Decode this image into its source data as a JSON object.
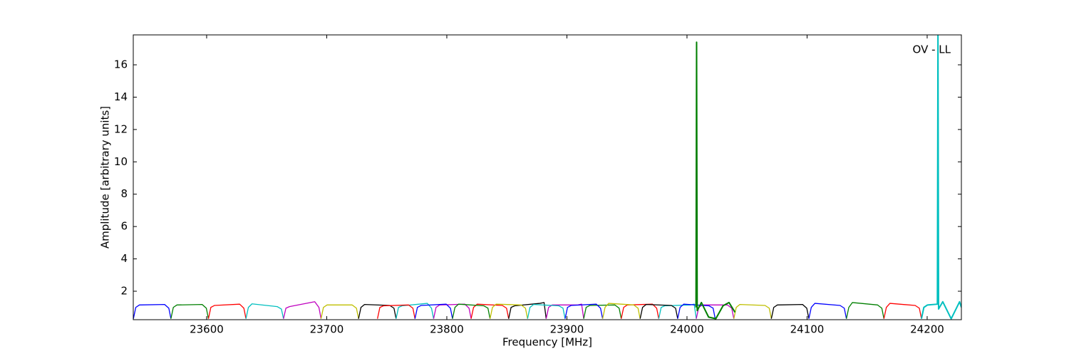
{
  "chart_data": {
    "type": "line",
    "xlabel": "Frequency [MHz]",
    "ylabel": "Amplitude [arbitrary units]",
    "annotation": "OV - LL",
    "xlim": [
      23538.9,
      24228.5
    ],
    "ylim": [
      0.24,
      17.85
    ],
    "xticks": [
      23600,
      23700,
      23800,
      23900,
      24000,
      24100,
      24200
    ],
    "yticks": [
      2,
      4,
      6,
      8,
      10,
      12,
      14,
      16
    ],
    "series": [
      {
        "color": "#0000ff",
        "x": [
          23539,
          23541,
          23544,
          23565,
          23568.5,
          23570.25
        ],
        "values": [
          0.3,
          1.0,
          1.15,
          1.18,
          0.95,
          0.3
        ]
      },
      {
        "color": "#007f00",
        "x": [
          23570.25,
          23572.25,
          23575.25,
          23596.25,
          23599.75,
          23601.5
        ],
        "values": [
          0.3,
          1.0,
          1.15,
          1.18,
          0.95,
          0.3
        ]
      },
      {
        "color": "#ff0000",
        "x": [
          23601.5,
          23603.5,
          23606.5,
          23627.5,
          23631,
          23632.75
        ],
        "values": [
          0.3,
          1.0,
          1.12,
          1.2,
          0.95,
          0.3
        ]
      },
      {
        "color": "#00bfbf",
        "x": [
          23632.75,
          23634.75,
          23637.75,
          23658.75,
          23662.25,
          23664
        ],
        "values": [
          0.3,
          1.0,
          1.22,
          1.05,
          0.9,
          0.3
        ]
      },
      {
        "color": "#bf00bf",
        "x": [
          23664,
          23666,
          23669,
          23690,
          23693.5,
          23695.25
        ],
        "values": [
          0.3,
          0.95,
          1.05,
          1.35,
          1.0,
          0.3
        ]
      },
      {
        "color": "#bfbf00",
        "x": [
          23695.25,
          23697.25,
          23700.25,
          23721.25,
          23724.75,
          23726.5
        ],
        "values": [
          0.3,
          1.0,
          1.15,
          1.15,
          0.95,
          0.3
        ]
      },
      {
        "color": "#000000",
        "x": [
          23726.5,
          23728.5,
          23731.5,
          23752.5,
          23756,
          23757.75
        ],
        "values": [
          0.3,
          1.0,
          1.18,
          1.12,
          0.95,
          0.3
        ]
      },
      {
        "color": "#00bfbf",
        "x": [
          23757.75,
          23759.75,
          23762.75,
          23783.75,
          23787.25,
          23789
        ],
        "values": [
          0.3,
          1.0,
          1.1,
          1.25,
          0.95,
          0.3
        ]
      },
      {
        "color": "#bf00bf",
        "x": [
          23789,
          23791,
          23794,
          23815,
          23818.5,
          23820.25
        ],
        "values": [
          0.3,
          1.0,
          1.15,
          1.2,
          0.95,
          0.3
        ]
      },
      {
        "color": "#ff0000",
        "x": [
          23820.25,
          23822.25,
          23825.25,
          23846.25,
          23849.75,
          23851.5
        ],
        "values": [
          0.3,
          1.0,
          1.2,
          1.12,
          0.95,
          0.3
        ]
      },
      {
        "color": "#000000",
        "x": [
          23851.5,
          23853.5,
          23856.5,
          23877.5,
          23881,
          23882.75
        ],
        "values": [
          0.3,
          1.0,
          1.1,
          1.25,
          1.3,
          0.3
        ]
      },
      {
        "color": "#bf00bf",
        "x": [
          23882.75,
          23884.75,
          23887.75,
          23908.75,
          23912.25,
          23914
        ],
        "values": [
          0.3,
          1.0,
          1.15,
          1.15,
          1.2,
          0.3
        ]
      },
      {
        "color": "#007f00",
        "x": [
          23914,
          23916,
          23919,
          23940,
          23943.5,
          23945.25
        ],
        "values": [
          0.3,
          1.0,
          1.12,
          1.15,
          0.95,
          0.3
        ]
      },
      {
        "color": "#ff0000",
        "x": [
          23945.25,
          23947.25,
          23950.25,
          23971.25,
          23974.75,
          23976.5
        ],
        "values": [
          0.3,
          1.0,
          1.15,
          1.2,
          0.95,
          0.3
        ]
      },
      {
        "color": "#00bfbf",
        "x": [
          23976.5,
          23978.5,
          23981.5,
          24002.5,
          24006,
          24007.75
        ],
        "values": [
          0.3,
          1.0,
          1.1,
          1.15,
          1.2,
          0.3
        ]
      },
      {
        "color": "#bf00bf",
        "x": [
          24007.75,
          24009.75,
          24012.75,
          24033.75,
          24037.25,
          24039
        ],
        "values": [
          0.3,
          1.0,
          1.15,
          1.15,
          0.95,
          0.3
        ]
      },
      {
        "color": "#bfbf00",
        "x": [
          24039,
          24041,
          24044,
          24065,
          24068.5,
          24070.25
        ],
        "values": [
          0.3,
          1.0,
          1.18,
          1.12,
          0.95,
          0.3
        ]
      },
      {
        "color": "#000000",
        "x": [
          24070.25,
          24072.25,
          24075.25,
          24096.25,
          24099.75,
          24101.5
        ],
        "values": [
          0.3,
          1.0,
          1.15,
          1.18,
          0.95,
          0.3
        ]
      },
      {
        "color": "#0000ff",
        "x": [
          24101.5,
          24103.5,
          24106.5,
          24127.5,
          24131,
          24132.75
        ],
        "values": [
          0.3,
          1.0,
          1.25,
          1.12,
          0.95,
          0.3
        ]
      },
      {
        "color": "#007f00",
        "x": [
          24132.75,
          24134.75,
          24137.75,
          24158.75,
          24162.25,
          24164
        ],
        "values": [
          0.3,
          1.0,
          1.3,
          1.15,
          0.95,
          0.3
        ]
      },
      {
        "color": "#ff0000",
        "x": [
          24164,
          24166,
          24169,
          24190,
          24193.5,
          24195.25
        ],
        "values": [
          0.3,
          1.0,
          1.25,
          1.12,
          0.95,
          0.3
        ]
      },
      {
        "color": "#ff0000",
        "x": [
          23742.25,
          23744.25,
          23747.25,
          23768.25,
          23771.75,
          23773.5
        ],
        "values": [
          0.3,
          1.0,
          1.1,
          1.15,
          0.95,
          0.3
        ]
      },
      {
        "color": "#0000ff",
        "x": [
          23773.5,
          23775.5,
          23778.5,
          23799.5,
          23803,
          23804.75
        ],
        "values": [
          0.3,
          1.0,
          1.12,
          1.2,
          0.95,
          0.3
        ]
      },
      {
        "color": "#007f00",
        "x": [
          23804.75,
          23806.75,
          23809.75,
          23830.75,
          23834.25,
          23836
        ],
        "values": [
          0.3,
          1.0,
          1.2,
          1.1,
          0.95,
          0.3
        ]
      },
      {
        "color": "#bfbf00",
        "x": [
          23836,
          23838,
          23841,
          23862,
          23865.5,
          23867.25
        ],
        "values": [
          0.3,
          1.0,
          1.2,
          1.15,
          0.95,
          0.3
        ]
      },
      {
        "color": "#00bfbf",
        "x": [
          23867.25,
          23869.25,
          23872.25,
          23893.25,
          23896.75,
          23898.5
        ],
        "values": [
          0.3,
          1.0,
          1.18,
          1.1,
          0.95,
          0.3
        ]
      },
      {
        "color": "#0000ff",
        "x": [
          23898.5,
          23900.5,
          23903.5,
          23924.5,
          23928,
          23929.75
        ],
        "values": [
          0.3,
          1.0,
          1.12,
          1.2,
          0.95,
          0.3
        ]
      },
      {
        "color": "#bfbf00",
        "x": [
          23929.75,
          23931.75,
          23934.75,
          23955.75,
          23959.25,
          23961
        ],
        "values": [
          0.3,
          1.0,
          1.25,
          1.15,
          0.95,
          0.3
        ]
      },
      {
        "color": "#000000",
        "x": [
          23961,
          23963,
          23966,
          23987,
          23990.5,
          23992.25
        ],
        "values": [
          0.3,
          1.0,
          1.18,
          1.12,
          0.95,
          0.3
        ]
      },
      {
        "color": "#0000ff",
        "x": [
          23992.25,
          23994.25,
          23997.25,
          24018.25,
          24021.75,
          24023.5
        ],
        "values": [
          0.3,
          1.0,
          1.2,
          1.1,
          0.95,
          0.3
        ]
      },
      {
        "color": "#007f00",
        "x": [
          24007.5,
          24008,
          24008.5,
          24012,
          24018,
          24024,
          24030,
          24035,
          24040
        ],
        "values": [
          1.0,
          17.4,
          0.8,
          1.3,
          0.4,
          0.3,
          1.1,
          1.3,
          0.7
        ]
      },
      {
        "color": "#00bfbf",
        "x": [
          24195.25,
          24197.25,
          24200.25,
          24208.5,
          24209,
          24209.5,
          24213,
          24220,
          24227,
          24228.5
        ],
        "values": [
          0.3,
          1.0,
          1.15,
          1.2,
          18,
          0.9,
          1.35,
          0.3,
          1.35,
          1.0
        ]
      }
    ]
  }
}
